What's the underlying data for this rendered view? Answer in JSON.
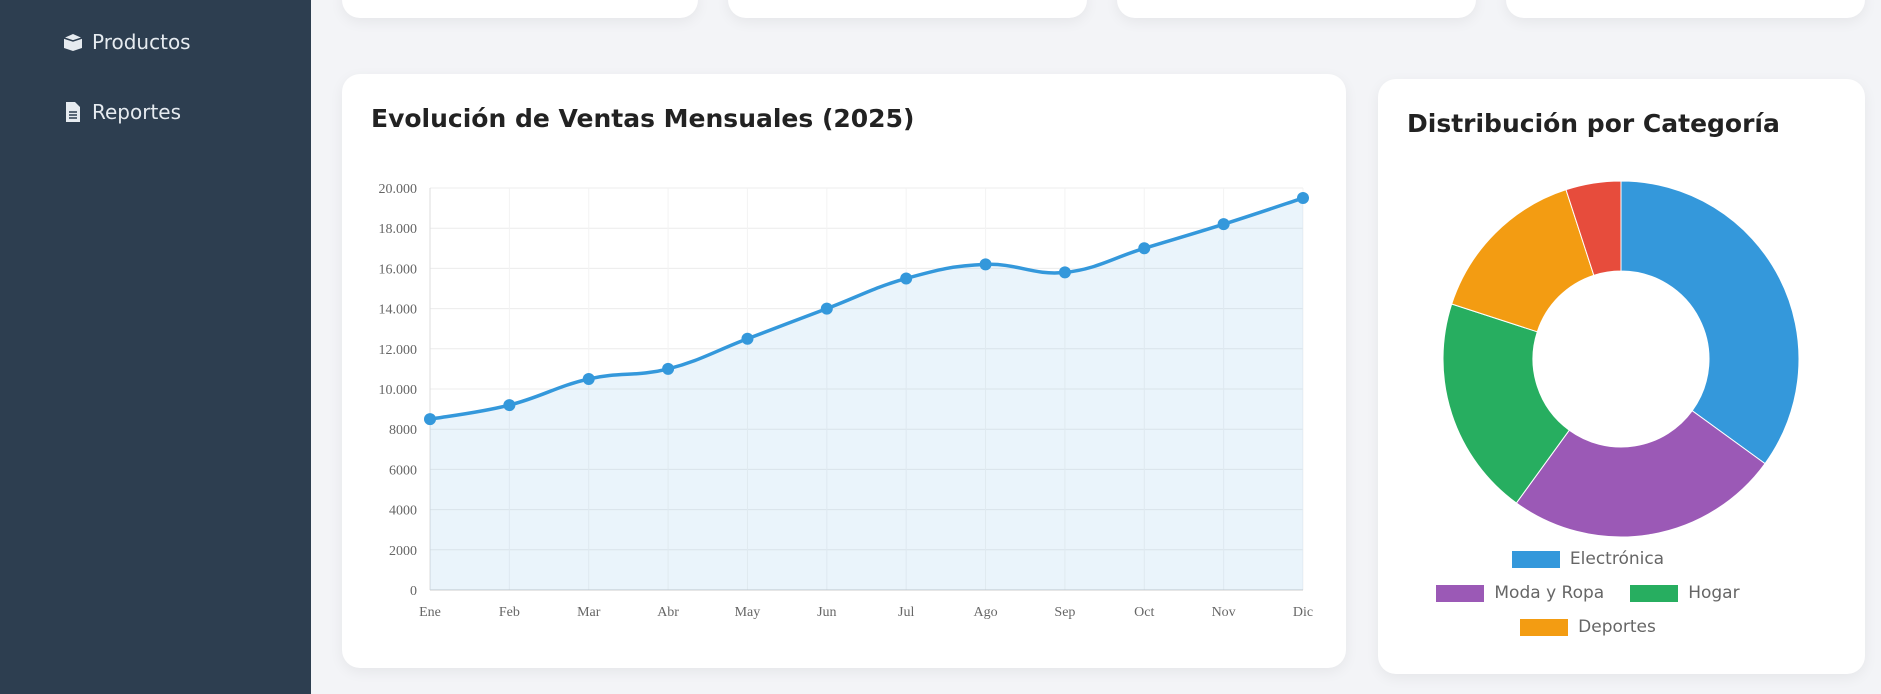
{
  "sidebar": {
    "items": [
      "Productos",
      "Reportes"
    ]
  },
  "chart_data": [
    {
      "type": "line",
      "title": "Evolución de Ventas Mensuales (2025)",
      "categories": [
        "Ene",
        "Feb",
        "Mar",
        "Abr",
        "May",
        "Jun",
        "Jul",
        "Ago",
        "Sep",
        "Oct",
        "Nov",
        "Dic"
      ],
      "values": [
        8500,
        9200,
        10500,
        11000,
        12500,
        14000,
        15500,
        16200,
        15800,
        17000,
        18200,
        19500
      ],
      "color": "#3498db",
      "ylim": [
        0,
        20000
      ],
      "yticks": [
        0,
        2000,
        4000,
        6000,
        8000,
        {
          "value": 10000,
          "label": "10.000"
        },
        {
          "value": 12000,
          "label": "12.000"
        },
        {
          "value": 14000,
          "label": "14.000"
        },
        {
          "value": 16000,
          "label": "16.000"
        },
        {
          "value": 18000,
          "label": "18.000"
        },
        {
          "value": 20000,
          "label": "20.000"
        }
      ],
      "grid": true
    },
    {
      "type": "doughnut",
      "title": "Distribución por Categoría",
      "categories": [
        "Electrónica",
        "Moda y Ropa",
        "Hogar",
        "Deportes",
        null
      ],
      "values": [
        35,
        25,
        20,
        15,
        5
      ],
      "colors": [
        "#3498db",
        "#9b59b6",
        "#27ae60",
        "#f39c12",
        "#e74c3c"
      ]
    }
  ]
}
